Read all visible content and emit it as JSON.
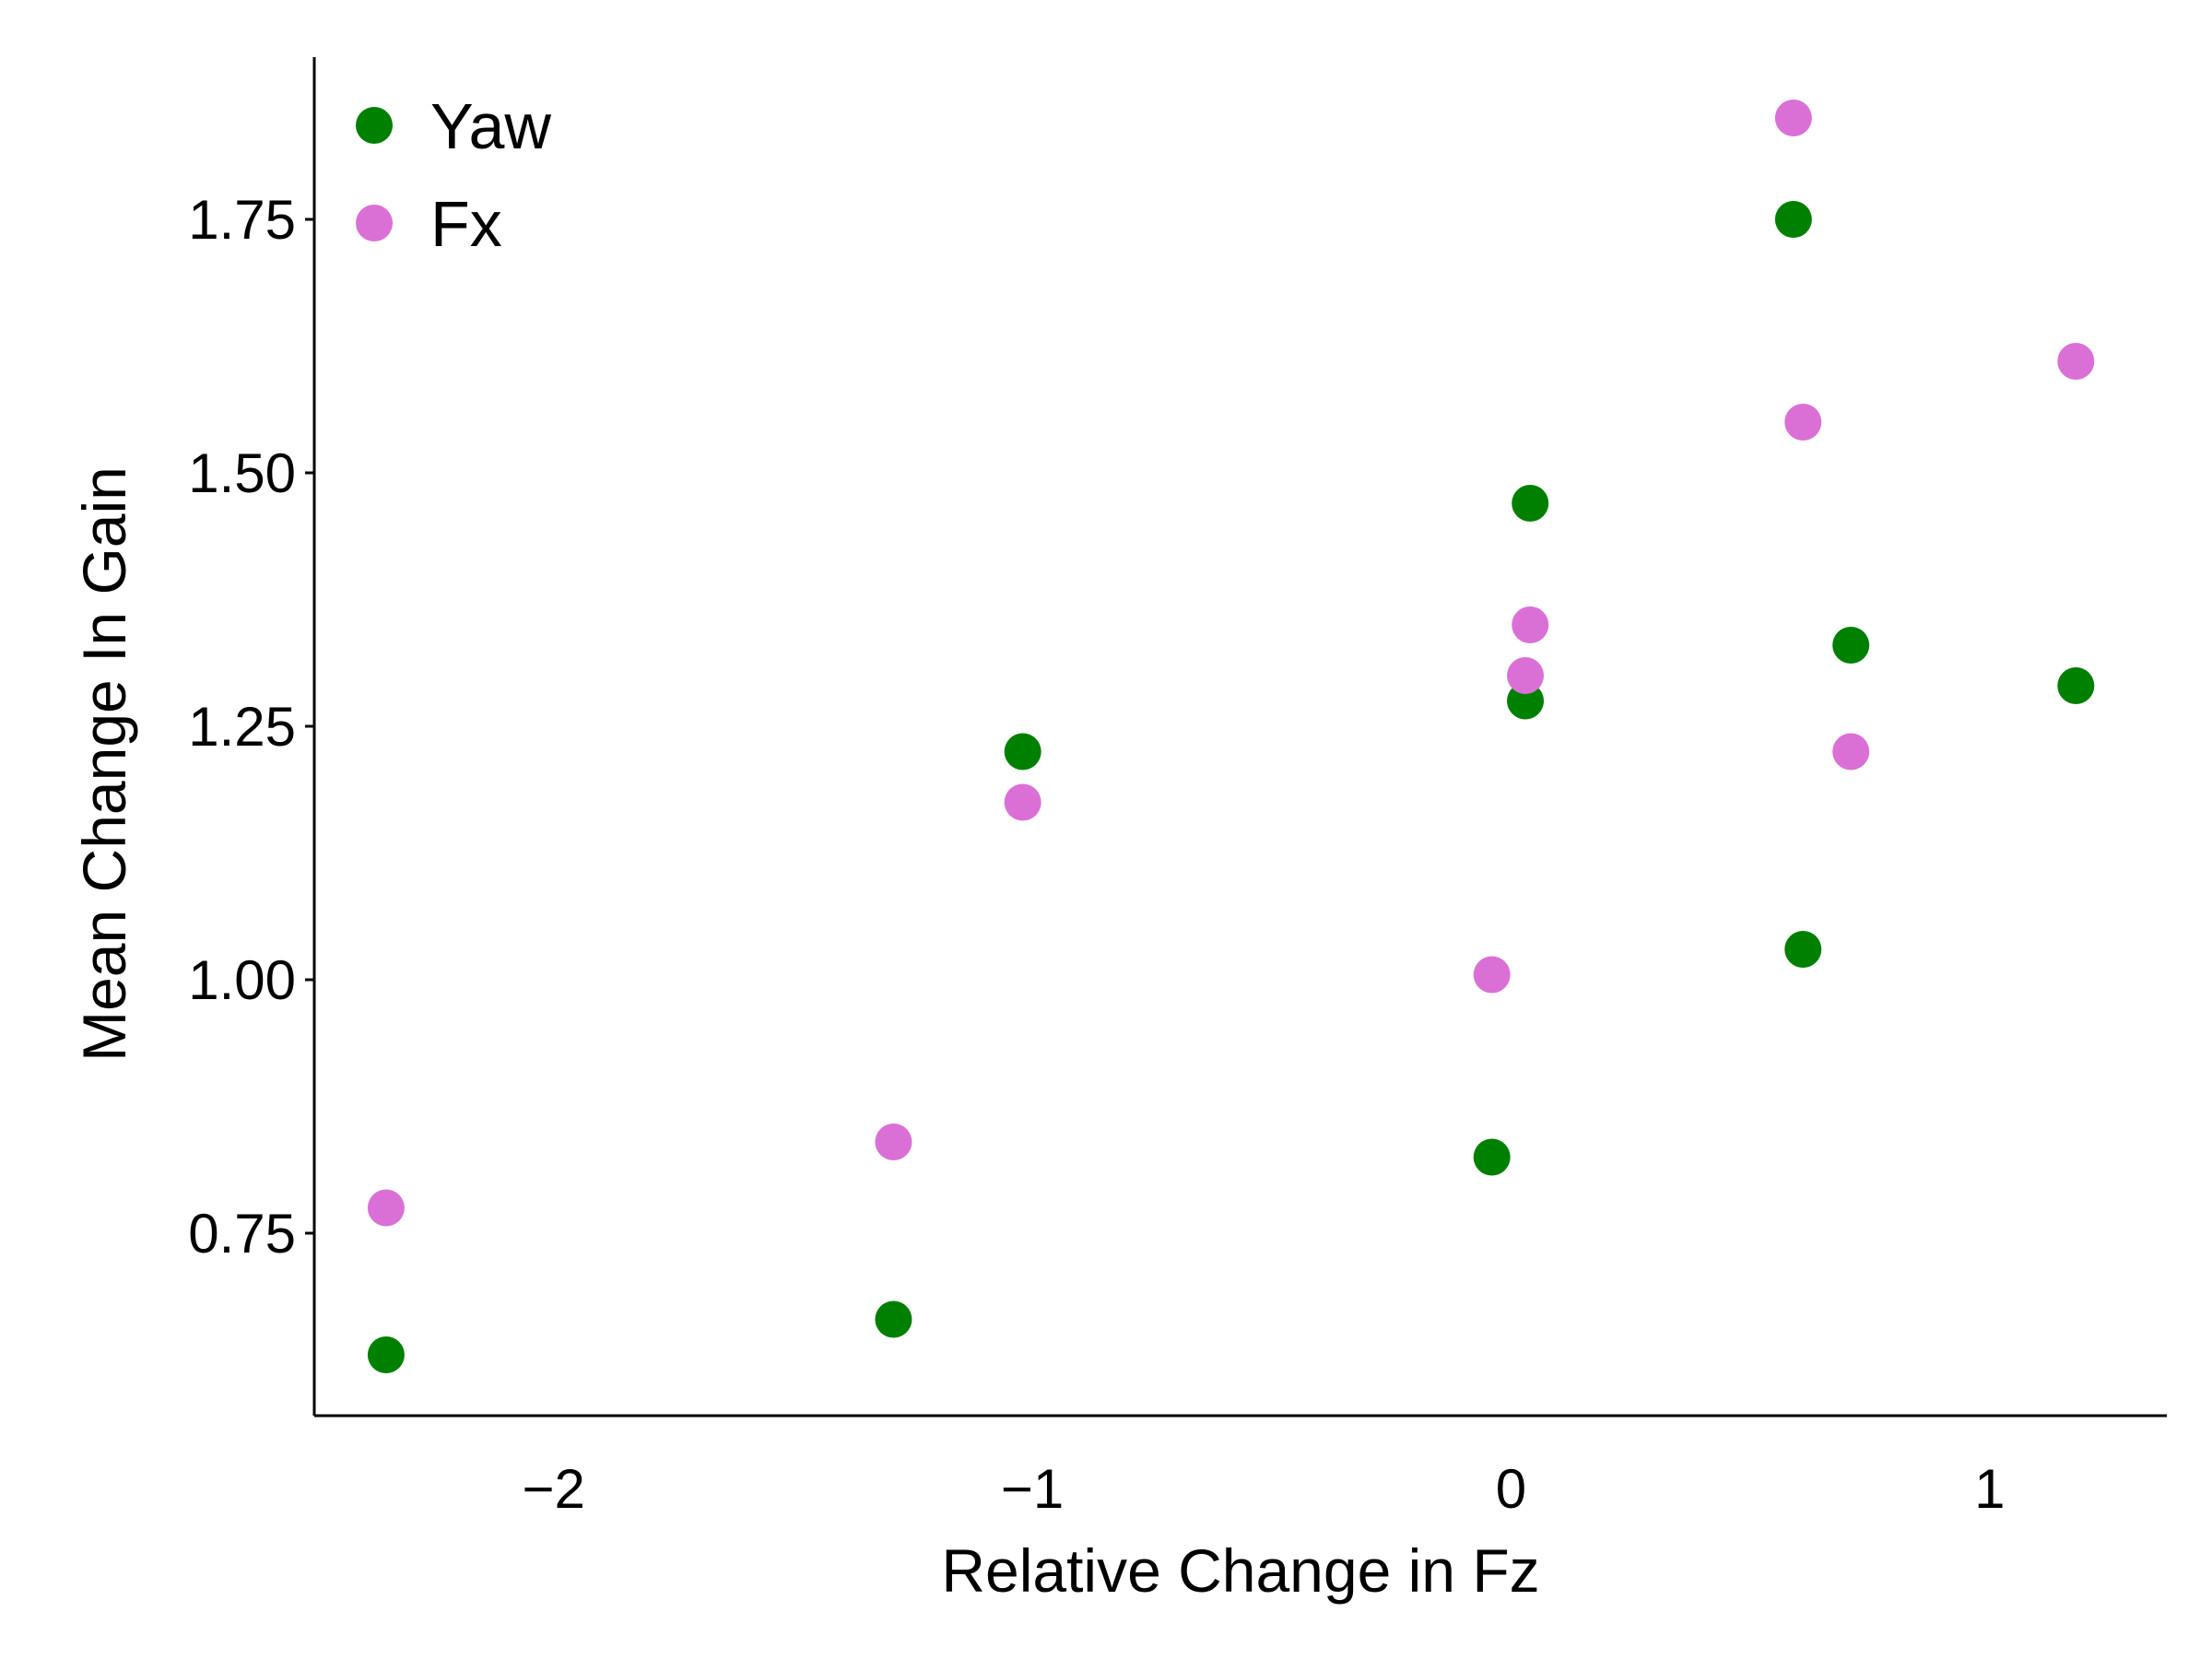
{
  "chart_data": {
    "type": "scatter",
    "xlabel": "Relative Change in Fz",
    "ylabel": "Mean Change In Gain",
    "xlim": [
      -2.5,
      1.37
    ],
    "ylim": [
      0.57,
      1.91
    ],
    "xticks": [
      -2,
      -1,
      0,
      1
    ],
    "xtick_labels": [
      "−2",
      "−1",
      "0",
      "1"
    ],
    "yticks": [
      0.75,
      1.0,
      1.25,
      1.5,
      1.75
    ],
    "ytick_labels": [
      "0.75",
      "1.00",
      "1.25",
      "1.50",
      "1.75"
    ],
    "grid": false,
    "legend_position": "top-left",
    "series": [
      {
        "name": "Yaw",
        "color": "#008000",
        "x": [
          -2.35,
          -1.29,
          -1.02,
          -0.04,
          0.03,
          0.04,
          0.59,
          0.61,
          0.71,
          1.18
        ],
        "y": [
          0.63,
          0.665,
          1.225,
          0.825,
          1.275,
          1.47,
          1.75,
          1.03,
          1.33,
          1.29
        ]
      },
      {
        "name": "Fx",
        "color": "#DA70D6",
        "x": [
          -2.35,
          -1.29,
          -1.02,
          -0.04,
          0.03,
          0.04,
          0.59,
          0.61,
          0.71,
          1.18
        ],
        "y": [
          0.775,
          0.84,
          1.175,
          1.005,
          1.3,
          1.35,
          1.85,
          1.55,
          1.225,
          1.61
        ]
      }
    ]
  }
}
